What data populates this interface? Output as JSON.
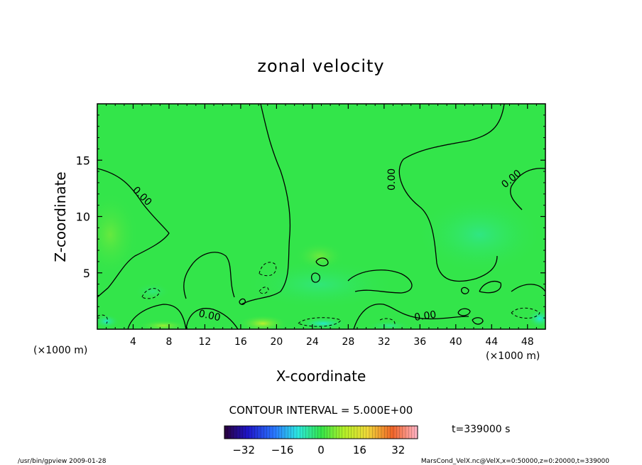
{
  "chart_data": {
    "type": "contour",
    "title": "zonal velocity",
    "xlabel": "X-coordinate",
    "ylabel": "Z-coordinate",
    "x_unit_left": "(×1000 m)",
    "x_unit_right": "(×1000 m)",
    "xlim": [
      0,
      50
    ],
    "ylim": [
      0,
      20
    ],
    "xticks": [
      4,
      8,
      12,
      16,
      20,
      24,
      28,
      32,
      36,
      40,
      44,
      48
    ],
    "yticks": [
      5,
      10,
      15
    ],
    "contour_labels": [
      "0.00",
      "0.00",
      "0.00",
      "0.00",
      "0.00"
    ],
    "contour_interval": "CONTOUR INTERVAL = 5.000E+00",
    "colorbar_ticks": [
      -32,
      -16,
      0,
      16,
      32
    ],
    "colorbar_range": [
      -40,
      40
    ],
    "time_label": "t=339000 s",
    "background_value": 0,
    "accent_green": "#33e54a"
  },
  "footer": {
    "left": "/usr/bin/gpview   2009-01-28",
    "right": "MarsCond_VelX.nc@VelX,x=0:50000,z=0:20000,t=339000"
  }
}
